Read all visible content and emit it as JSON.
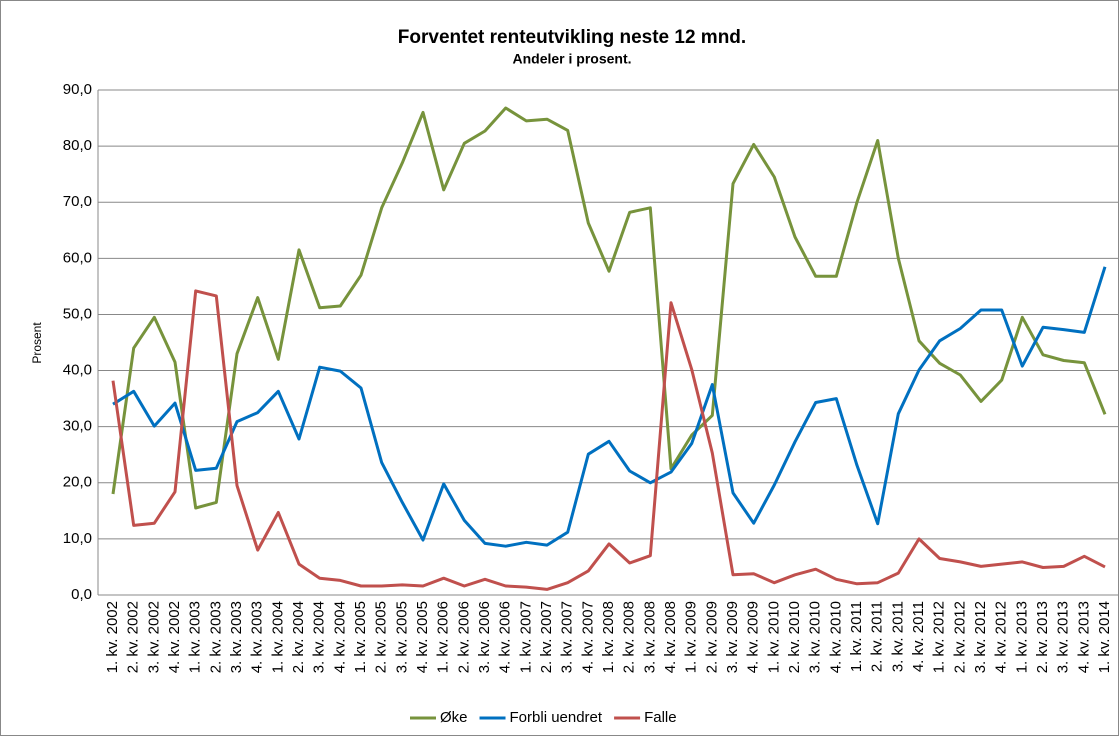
{
  "chart_data": {
    "type": "line",
    "title": "Forventet renteutvikling neste 12 mnd.",
    "subtitle": "Andeler i prosent.",
    "ylabel": "Prosent",
    "categories": [
      "1. kv. 2002",
      "2. kv. 2002",
      "3. kv. 2002",
      "4. kv. 2002",
      "1. kv. 2003",
      "2. kv. 2003",
      "3. kv. 2003",
      "4. kv. 2003",
      "1. kv. 2004",
      "2. kv. 2004",
      "3. kv. 2004",
      "4. kv. 2004",
      "1. kv. 2005",
      "2. kv. 2005",
      "3. kv. 2005",
      "4. kv. 2005",
      "1. kv. 2006",
      "2. kv. 2006",
      "3. kv. 2006",
      "4. kv. 2006",
      "1. kv. 2007",
      "2. kv. 2007",
      "3. kv. 2007",
      "4. kv. 2007",
      "1. kv. 2008",
      "2. kv. 2008",
      "3. kv. 2008",
      "4. kv. 2008",
      "1. kv. 2009",
      "2. kv. 2009",
      "3. kv. 2009",
      "4. kv. 2009",
      "1. kv. 2010",
      "2. kv. 2010",
      "3. kv. 2010",
      "4. kv. 2010",
      "1. kv. 2011",
      "2. kv. 2011",
      "3. kv. 2011",
      "4. kv. 2011",
      "1. kv. 2012",
      "2. kv. 2012",
      "3. kv. 2012",
      "4. kv. 2012",
      "1. kv. 2013",
      "2. kv. 2013",
      "3. kv. 2013",
      "4. kv. 2013",
      "1. kv. 2014"
    ],
    "series": [
      {
        "name": "Øke",
        "color": "#77933c",
        "values": [
          18,
          44,
          49.5,
          41.5,
          15.5,
          16.5,
          43,
          53,
          42,
          61.5,
          51.2,
          51.5,
          57,
          69,
          77,
          86,
          72.2,
          80.5,
          82.7,
          86.8,
          84.5,
          84.8,
          82.8,
          66.3,
          57.7,
          68.2,
          69,
          22.5,
          28.5,
          32,
          73.3,
          80.3,
          74.5,
          63.8,
          56.8,
          56.8,
          70,
          81,
          60,
          45.3,
          41.3,
          39.2,
          34.5,
          38.3,
          49.5,
          42.8,
          41.8,
          41.4,
          32.2
        ]
      },
      {
        "name": "Forbli uendret",
        "color": "#0070c0",
        "values": [
          34,
          36.3,
          30.1,
          34.2,
          22.2,
          22.6,
          30.9,
          32.5,
          36.3,
          27.8,
          40.6,
          39.9,
          36.9,
          23.6,
          16.5,
          9.8,
          19.8,
          13.3,
          9.2,
          8.7,
          9.4,
          8.9,
          11.2,
          25.1,
          27.4,
          22.1,
          20,
          21.9,
          27,
          37.5,
          18.2,
          12.8,
          19.6,
          27.3,
          34.3,
          35,
          23.1,
          12.7,
          32.3,
          40.1,
          45.3,
          47.5,
          50.8,
          50.8,
          40.8,
          47.7,
          47.3,
          46.8,
          58.5
        ]
      },
      {
        "name": "Falle",
        "color": "#c0504d",
        "values": [
          38.2,
          12.4,
          12.8,
          18.4,
          54.2,
          53.3,
          19.5,
          8,
          14.7,
          5.5,
          3,
          2.6,
          1.6,
          1.6,
          1.8,
          1.6,
          3,
          1.6,
          2.8,
          1.6,
          1.4,
          1,
          2.2,
          4.3,
          9.1,
          5.7,
          7,
          52.1,
          40.2,
          25.3,
          3.6,
          3.8,
          2.2,
          3.6,
          4.6,
          2.8,
          2,
          2.2,
          3.9,
          10,
          6.5,
          5.9,
          5.1,
          5.5,
          5.9,
          4.9,
          5.1,
          6.9,
          5
        ]
      }
    ],
    "ylim": [
      0,
      90
    ],
    "yticks": [
      {
        "value": 0,
        "label": "0,0"
      },
      {
        "value": 10,
        "label": "10,0"
      },
      {
        "value": 20,
        "label": "20,0"
      },
      {
        "value": 30,
        "label": "30,0"
      },
      {
        "value": 40,
        "label": "40,0"
      },
      {
        "value": 50,
        "label": "50,0"
      },
      {
        "value": 60,
        "label": "60,0"
      },
      {
        "value": 70,
        "label": "70,0"
      },
      {
        "value": 80,
        "label": "80,0"
      },
      {
        "value": 90,
        "label": "90,0"
      }
    ],
    "grid": true,
    "legend": "bottom"
  }
}
